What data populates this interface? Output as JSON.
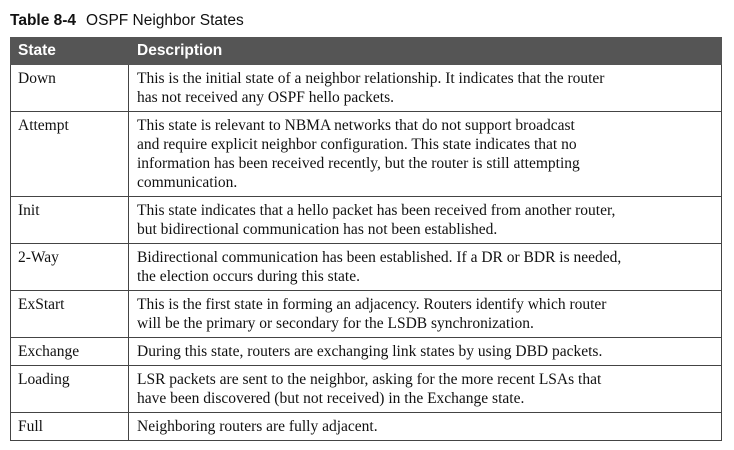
{
  "caption": {
    "number": "Table 8-4",
    "title": "OSPF Neighbor States"
  },
  "table": {
    "headers": [
      "State",
      "Description"
    ],
    "rows": [
      {
        "state": "Down",
        "lines": [
          "This is the initial state of a neighbor relationship. It indicates that the router",
          "has not received any OSPF hello packets."
        ]
      },
      {
        "state": "Attempt",
        "lines": [
          "This state is relevant to NBMA networks that do not support broadcast",
          "and require explicit neighbor configuration. This state indicates that no",
          "information has been received recently, but the router is still attempting",
          "communication."
        ]
      },
      {
        "state": "Init",
        "lines": [
          "This state indicates that a hello packet has been received from another router,",
          "but bidirectional communication has not been established."
        ]
      },
      {
        "state": "2-Way",
        "lines": [
          "Bidirectional communication has been established. If a DR or BDR is needed,",
          "the election occurs during this state."
        ]
      },
      {
        "state": "ExStart",
        "lines": [
          "This is the first state in forming an adjacency. Routers identify which router",
          "will be the primary or secondary for the LSDB synchronization."
        ]
      },
      {
        "state": "Exchange",
        "lines": [
          "During this state, routers are exchanging link states by using DBD packets."
        ]
      },
      {
        "state": "Loading",
        "lines": [
          "LSR packets are sent to the neighbor, asking for the more recent LSAs that",
          "have been discovered (but not received) in the Exchange state."
        ]
      },
      {
        "state": "Full",
        "lines": [
          "Neighboring routers are fully adjacent."
        ]
      }
    ]
  }
}
